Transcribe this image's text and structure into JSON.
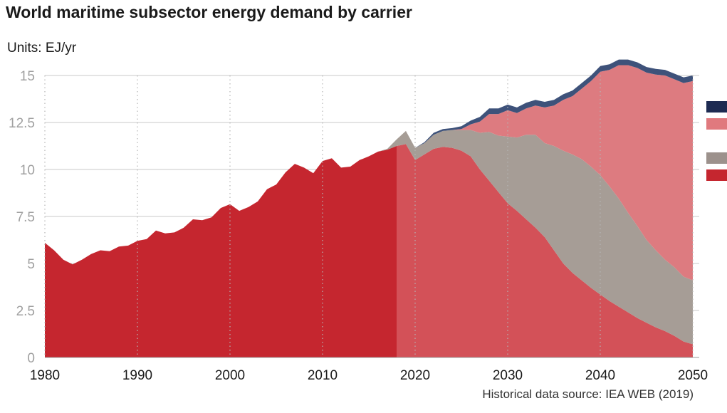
{
  "title": "World maritime subsector energy demand by carrier",
  "units": "Units: EJ/yr",
  "source": "Historical data source: IEA WEB (2019)",
  "chart_data": {
    "type": "area",
    "title": "World maritime subsector energy demand by carrier",
    "ylabel": "EJ/yr",
    "xlim": [
      1980,
      2050
    ],
    "ylim": [
      0,
      15
    ],
    "x_ticks": [
      1980,
      1990,
      2000,
      2010,
      2020,
      2030,
      2040,
      2050
    ],
    "y_ticks": [
      0,
      2.5,
      5,
      7.5,
      10,
      12.5,
      15
    ],
    "y_tick_labels": [
      "0",
      "2.5",
      "5",
      "7.5",
      "10",
      "12.5",
      "15"
    ],
    "grid": "horizontal solid, vertical dotted",
    "historical_end": 2018,
    "series": [
      {
        "color": "#c5262f",
        "forecast_color": "#d35158",
        "x": [
          1980,
          1981,
          1982,
          1983,
          1984,
          1985,
          1986,
          1987,
          1988,
          1989,
          1990,
          1991,
          1992,
          1993,
          1994,
          1995,
          1996,
          1997,
          1998,
          1999,
          2000,
          2001,
          2002,
          2003,
          2004,
          2005,
          2006,
          2007,
          2008,
          2009,
          2010,
          2011,
          2012,
          2013,
          2014,
          2015,
          2016,
          2017,
          2018,
          2019,
          2020,
          2021,
          2022,
          2023,
          2024,
          2025,
          2026,
          2027,
          2028,
          2029,
          2030,
          2031,
          2032,
          2033,
          2034,
          2035,
          2036,
          2037,
          2038,
          2039,
          2040,
          2041,
          2042,
          2043,
          2044,
          2045,
          2046,
          2047,
          2048,
          2049,
          2050
        ],
        "values": [
          6.1,
          5.7,
          5.2,
          4.95,
          5.2,
          5.5,
          5.7,
          5.65,
          5.9,
          5.95,
          6.2,
          6.3,
          6.75,
          6.6,
          6.65,
          6.9,
          7.35,
          7.3,
          7.45,
          7.95,
          8.15,
          7.8,
          8.0,
          8.3,
          8.95,
          9.2,
          9.85,
          10.3,
          10.1,
          9.8,
          10.45,
          10.6,
          10.1,
          10.15,
          10.5,
          10.7,
          10.95,
          11.05,
          11.25,
          11.35,
          10.5,
          10.8,
          11.1,
          11.2,
          11.15,
          11.0,
          10.7,
          10.0,
          9.4,
          8.8,
          8.2,
          7.8,
          7.35,
          6.9,
          6.4,
          5.7,
          5.0,
          4.5,
          4.1,
          3.7,
          3.35,
          3.0,
          2.7,
          2.4,
          2.1,
          1.85,
          1.6,
          1.4,
          1.15,
          0.85,
          0.7
        ]
      },
      {
        "color": "#a69d96",
        "x": [
          1980,
          2014,
          2015,
          2016,
          2017,
          2018,
          2019,
          2020,
          2021,
          2022,
          2023,
          2024,
          2025,
          2026,
          2027,
          2028,
          2029,
          2030,
          2031,
          2032,
          2033,
          2034,
          2035,
          2036,
          2037,
          2038,
          2039,
          2040,
          2041,
          2042,
          2043,
          2044,
          2045,
          2046,
          2047,
          2048,
          2049,
          2050
        ],
        "values": [
          0,
          0,
          0,
          0,
          0.05,
          0.35,
          0.7,
          0.65,
          0.6,
          0.75,
          0.85,
          0.95,
          1.1,
          1.4,
          1.95,
          2.6,
          3.0,
          3.55,
          3.9,
          4.5,
          4.95,
          5.0,
          5.55,
          6.0,
          6.3,
          6.45,
          6.45,
          6.35,
          6.1,
          5.75,
          5.3,
          4.9,
          4.4,
          4.1,
          3.8,
          3.65,
          3.45,
          3.4
        ]
      },
      {
        "color": "#dd7b80",
        "x": [
          2025,
          2026,
          2027,
          2028,
          2029,
          2030,
          2031,
          2032,
          2033,
          2034,
          2035,
          2036,
          2037,
          2038,
          2039,
          2040,
          2041,
          2042,
          2043,
          2044,
          2045,
          2046,
          2047,
          2048,
          2049,
          2050
        ],
        "values": [
          0.05,
          0.3,
          0.6,
          0.95,
          1.15,
          1.4,
          1.3,
          1.4,
          1.55,
          1.9,
          2.15,
          2.7,
          3.1,
          3.75,
          4.55,
          5.5,
          6.2,
          7.1,
          7.85,
          8.4,
          8.9,
          9.35,
          9.8,
          10.0,
          10.3,
          10.6
        ]
      },
      {
        "color": "#3e527a",
        "x": [
          2021,
          2022,
          2023,
          2024,
          2025,
          2026,
          2027,
          2028,
          2029,
          2030,
          2031,
          2032,
          2033,
          2034,
          2035,
          2036,
          2037,
          2038,
          2039,
          2040,
          2041,
          2042,
          2043,
          2044,
          2045,
          2046,
          2047,
          2048,
          2049,
          2050
        ],
        "values": [
          0.05,
          0.1,
          0.1,
          0.1,
          0.15,
          0.2,
          0.25,
          0.3,
          0.3,
          0.3,
          0.3,
          0.3,
          0.3,
          0.3,
          0.3,
          0.3,
          0.3,
          0.3,
          0.3,
          0.3,
          0.3,
          0.3,
          0.3,
          0.3,
          0.3,
          0.3,
          0.3,
          0.3,
          0.3,
          0.3
        ]
      }
    ],
    "legend_colors": [
      "#1d2b52",
      "#e0797e",
      "#9c918c",
      "#c5262f"
    ]
  }
}
